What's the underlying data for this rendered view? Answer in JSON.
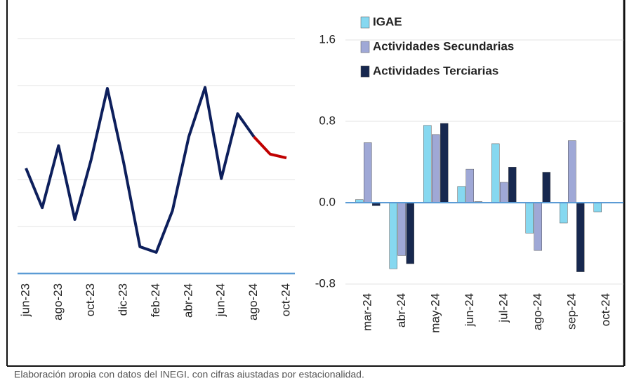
{
  "chart_data": [
    {
      "type": "line",
      "categories": [
        "jun-23",
        null,
        "ago-23",
        null,
        "oct-23",
        null,
        "dic-23",
        null,
        "feb-24",
        null,
        "abr-24",
        null,
        "jun-24",
        null,
        "ago-24",
        null,
        "oct-24"
      ],
      "series": [
        {
          "color": "#0d1f5c",
          "values": [
            2.24,
            1.4,
            2.72,
            1.15,
            2.42,
            3.94,
            2.36,
            0.57,
            0.45,
            1.34,
            2.91,
            3.96,
            2.02,
            3.4,
            2.91,
            null,
            null
          ]
        },
        {
          "color": "#c00000",
          "values": [
            null,
            null,
            null,
            null,
            null,
            null,
            null,
            null,
            null,
            null,
            null,
            null,
            null,
            null,
            2.91,
            2.54,
            2.46
          ]
        }
      ],
      "ylim": [
        0,
        5
      ],
      "yticks": [
        0,
        1,
        2,
        3,
        4,
        5
      ],
      "grid": true
    },
    {
      "type": "bar",
      "categories": [
        "mar-24",
        "abr-24",
        "may-24",
        "jun-24",
        "jul-24",
        "ago-24",
        "sep-24",
        "oct-24"
      ],
      "series": [
        {
          "name": "IGAE",
          "color": "#86d8f0",
          "values": [
            0.03,
            -0.65,
            0.76,
            0.16,
            0.58,
            -0.3,
            -0.2,
            -0.09
          ]
        },
        {
          "name": "Actividades Secundarias",
          "color": "#9fa8d6",
          "values": [
            0.59,
            -0.52,
            0.67,
            0.33,
            0.2,
            -0.47,
            0.61,
            0
          ]
        },
        {
          "name": "Actividades Terciarias",
          "color": "#17284f",
          "values": [
            -0.03,
            -0.6,
            0.78,
            0.01,
            0.35,
            0.3,
            -0.68,
            0
          ]
        }
      ],
      "ylim": [
        -0.8,
        1.6
      ],
      "yticks": [
        {
          "value": -0.8,
          "label": "-0.8"
        },
        {
          "value": 0,
          "label": "0.0"
        },
        {
          "value": 0.8,
          "label": "0.8"
        },
        {
          "value": 1.6,
          "label": "1.6"
        }
      ],
      "grid": true,
      "legend": "top"
    }
  ],
  "footer": "Elaboración propia con datos del INEGI, con cifras ajustadas por estacionalidad."
}
